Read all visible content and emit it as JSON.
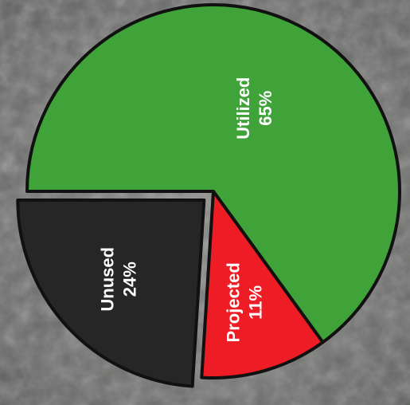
{
  "chart_data": {
    "type": "pie",
    "categories": [
      "Utilized",
      "Projected",
      "Unused"
    ],
    "values": [
      65,
      11,
      24
    ],
    "value_labels": [
      "65%",
      "11%",
      "24%"
    ],
    "colors": [
      "#3fa33a",
      "#ee1c24",
      "#262626"
    ],
    "exploded": [
      false,
      false,
      true
    ]
  }
}
